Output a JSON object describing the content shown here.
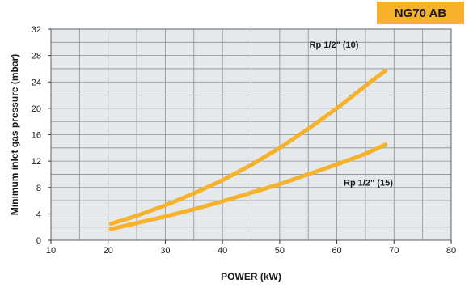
{
  "badge": {
    "label": "NG70 AB",
    "color": "#f5b22a"
  },
  "chart_data": {
    "type": "line",
    "title": "",
    "xlabel": "POWER (kW)",
    "ylabel": "Minimum inlet gas pressure (mbar)",
    "xlim": [
      10,
      80
    ],
    "ylim": [
      0,
      32
    ],
    "x_ticks": [
      "10",
      "20",
      "30",
      "40",
      "50",
      "60",
      "70",
      "80"
    ],
    "y_ticks": [
      "0",
      "4",
      "8",
      "12",
      "16",
      "20",
      "24",
      "28",
      "32"
    ],
    "grid": true,
    "grid_color": "#8a9096",
    "plot_background": "#e6e9ec",
    "line_color": "#f5b22a",
    "series": [
      {
        "name": "Rp 1/2\" (10)",
        "x": [
          20.5,
          25,
          30,
          35,
          40,
          45,
          50,
          55,
          60,
          65,
          68.5
        ],
        "y": [
          2.5,
          3.7,
          5.3,
          7.1,
          9.1,
          11.4,
          14.0,
          16.9,
          20.0,
          23.4,
          25.7
        ]
      },
      {
        "name": "Rp 1/2\" (15)",
        "x": [
          20.5,
          25,
          30,
          35,
          40,
          45,
          50,
          55,
          60,
          65,
          68.5
        ],
        "y": [
          1.7,
          2.6,
          3.6,
          4.7,
          5.9,
          7.2,
          8.5,
          10.0,
          11.5,
          13.1,
          14.5
        ]
      }
    ]
  }
}
